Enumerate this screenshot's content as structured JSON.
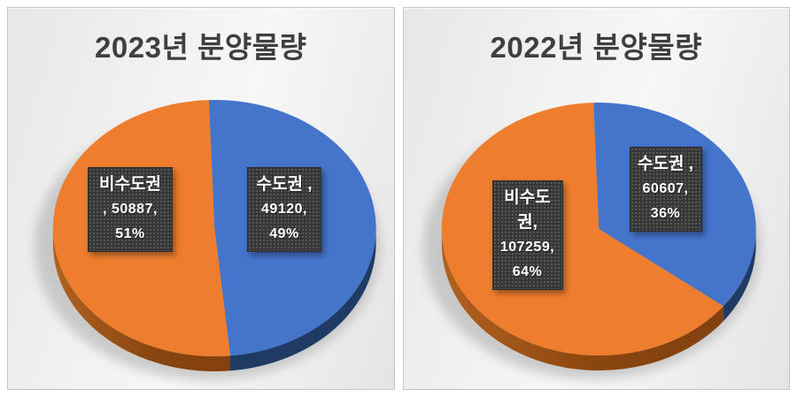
{
  "theme": {
    "page_bg": "#ffffff",
    "panel_border": "#c6c6c6",
    "panel_bg_light": "#f7f7f7",
    "panel_bg_dark": "#e4e4e4",
    "title_color": "#3f3f3f",
    "label_box_bg": "#373737",
    "label_text_color": "#ffffff",
    "blue": "#4574cb",
    "orange": "#ee7d2d",
    "blue_side": "#1f3a63",
    "orange_side_light": "#b2611f",
    "orange_side_dark": "#84400e"
  },
  "chart_data": [
    {
      "type": "pie",
      "style": "3d",
      "title": "2023년 분양물량",
      "legend": "none",
      "direction": "clockwise",
      "start_angle_deg": -2,
      "labels": [
        "수도권",
        "비수도권"
      ],
      "values": [
        49120,
        50887
      ],
      "percents": [
        49,
        51
      ],
      "colors": [
        "#4574cb",
        "#ee7d2d"
      ],
      "side_colors": [
        "#1f3a63",
        "#9a5212"
      ],
      "data_labels": [
        {
          "slice": "비수도권",
          "lines": [
            "비수도권",
            ", 50887,",
            "51%"
          ]
        },
        {
          "slice": "수도권",
          "lines": [
            "수도권 ,",
            "49120,",
            "49%"
          ]
        }
      ]
    },
    {
      "type": "pie",
      "style": "3d",
      "title": "2022년 분양물량",
      "legend": "none",
      "direction": "clockwise",
      "start_angle_deg": -2,
      "labels": [
        "수도권",
        "비수도권"
      ],
      "values": [
        60607,
        107259
      ],
      "percents": [
        36,
        64
      ],
      "colors": [
        "#4574cb",
        "#ee7d2d"
      ],
      "side_colors": [
        "#1f3a63",
        "#9a5212"
      ],
      "data_labels": [
        {
          "slice": "비수도권",
          "lines": [
            "비수도",
            "권,",
            "107259,",
            "64%"
          ]
        },
        {
          "slice": "수도권",
          "lines": [
            "수도권 ,",
            "60607,",
            "36%"
          ]
        }
      ]
    }
  ]
}
